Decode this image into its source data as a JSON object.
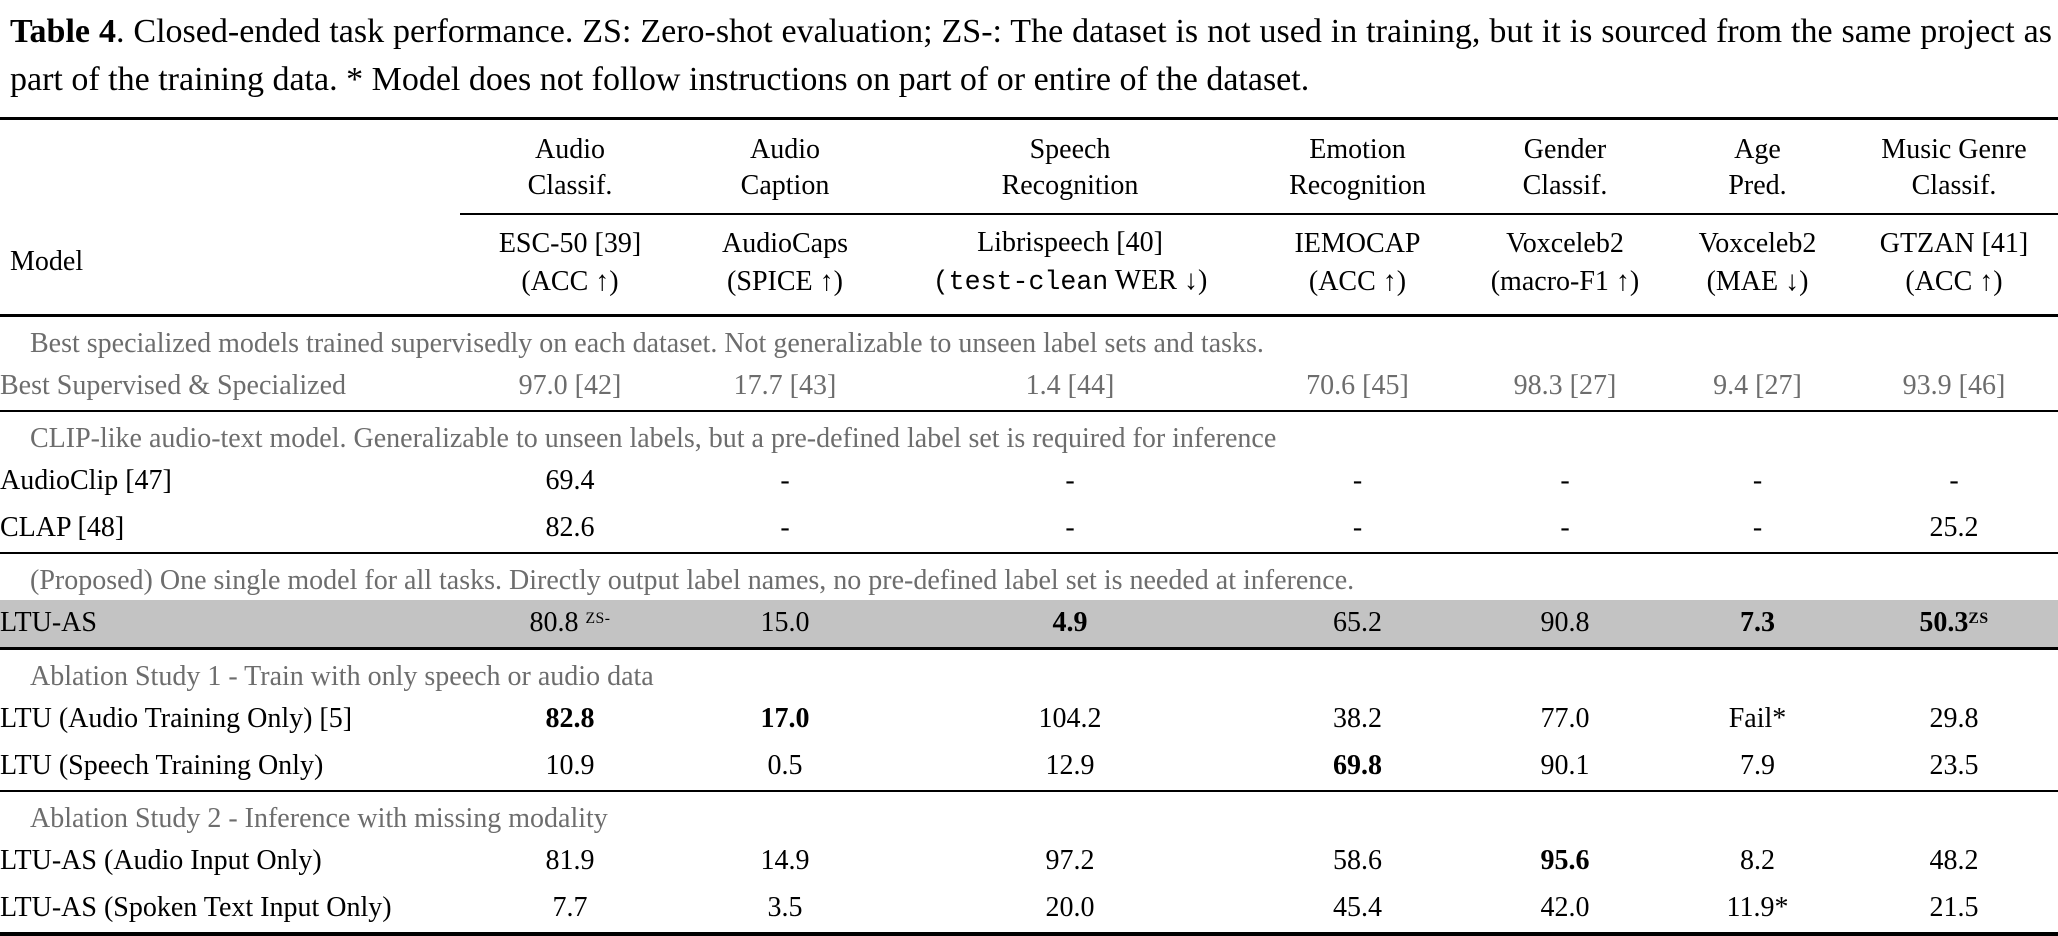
{
  "caption": {
    "label": "Table 4",
    "rest": ".  Closed-ended task performance. ZS: Zero-shot evaluation; ZS-: The dataset is not used in training, but it is sourced from the same project as part of the training data. * Model does not follow instructions on part of or entire of the dataset."
  },
  "table": {
    "header": {
      "model_label": "Model",
      "groups": [
        {
          "line1": "Audio",
          "line2": "Classif."
        },
        {
          "line1": "Audio",
          "line2": "Caption"
        },
        {
          "line1": "Speech",
          "line2": "Recognition"
        },
        {
          "line1": "Emotion",
          "line2": "Recognition"
        },
        {
          "line1": "Gender",
          "line2": "Classif."
        },
        {
          "line1": "Age",
          "line2": "Pred."
        },
        {
          "line1": "Music Genre",
          "line2": "Classif."
        }
      ],
      "datasets": [
        {
          "name": "ESC-50 [39]",
          "metric": "(ACC ↑)"
        },
        {
          "name": "AudioCaps",
          "metric": "(SPICE ↑)"
        },
        {
          "name": "Librispeech [40]",
          "metric_mono": "(test-clean",
          "metric_rest": " WER ↓)"
        },
        {
          "name": "IEMOCAP",
          "metric": "(ACC ↑)"
        },
        {
          "name": "Voxceleb2",
          "metric": "(macro-F1 ↑)"
        },
        {
          "name": "Voxceleb2",
          "metric": "(MAE ↓)"
        },
        {
          "name": "GTZAN [41]",
          "metric": "(ACC ↑)"
        }
      ]
    },
    "sections": [
      {
        "note": "Best specialized models trained supervisedly on each dataset. Not generalizable to unseen label sets and tasks.",
        "rows": [
          {
            "model": "Best Supervised & Specialized",
            "gray": true,
            "cells": [
              "97.0 [42]",
              "17.7 [43]",
              "1.4 [44]",
              "70.6 [45]",
              "98.3 [27]",
              "9.4 [27]",
              "93.9 [46]"
            ]
          }
        ]
      },
      {
        "note": "CLIP-like audio-text model. Generalizable to unseen labels, but a pre-defined label set is required for inference",
        "rows": [
          {
            "model": "AudioClip [47]",
            "cells": [
              "69.4",
              "-",
              "-",
              "-",
              "-",
              "-",
              "-"
            ]
          },
          {
            "model": "CLAP [48]",
            "cells": [
              "82.6",
              "-",
              "-",
              "-",
              "-",
              "-",
              "25.2"
            ]
          }
        ]
      },
      {
        "note": "(Proposed) One single model for all tasks. Directly output label names, no pre-defined label set is needed at inference.",
        "rows": [
          {
            "model": "LTU-AS",
            "highlight": true,
            "cells": [
              {
                "v": "80.8",
                "sup": "ZS-",
                "supgap": true
              },
              "15.0",
              {
                "v": "4.9",
                "b": true
              },
              "65.2",
              "90.8",
              {
                "v": "7.3",
                "b": true
              },
              {
                "v": "50.3",
                "b": true,
                "sup": "ZS"
              }
            ]
          }
        ]
      },
      {
        "note": "Ablation Study 1 - Train with only speech or audio data",
        "rows": [
          {
            "model": "LTU (Audio Training Only) [5]",
            "cells": [
              {
                "v": "82.8",
                "b": true
              },
              {
                "v": "17.0",
                "b": true
              },
              "104.2",
              "38.2",
              "77.0",
              "Fail*",
              "29.8"
            ]
          },
          {
            "model": "LTU (Speech Training Only)",
            "cells": [
              "10.9",
              "0.5",
              "12.9",
              {
                "v": "69.8",
                "b": true
              },
              "90.1",
              "7.9",
              "23.5"
            ]
          }
        ]
      },
      {
        "note": "Ablation Study 2 - Inference with missing modality",
        "rows": [
          {
            "model": "LTU-AS (Audio Input Only)",
            "cells": [
              "81.9",
              "14.9",
              "97.2",
              "58.6",
              {
                "v": "95.6",
                "b": true
              },
              "8.2",
              "48.2"
            ]
          },
          {
            "model": "LTU-AS (Spoken Text Input Only)",
            "cells": [
              "7.7",
              "3.5",
              "20.0",
              "45.4",
              "42.0",
              "11.9*",
              "21.5"
            ]
          }
        ]
      }
    ],
    "colors": {
      "highlight_row": "#c3c3c3",
      "gray_text": "#6d6d6d"
    }
  }
}
